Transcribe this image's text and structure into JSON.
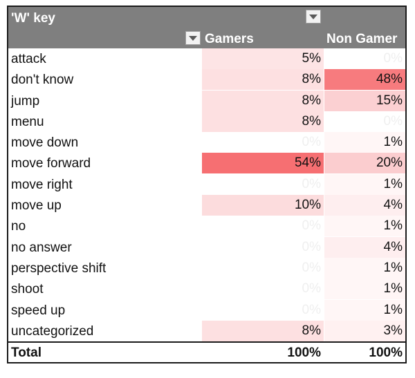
{
  "pivot": {
    "title": "'W' key",
    "columns": [
      "Gamers",
      "Non Gamer"
    ],
    "rows": [
      {
        "label": "attack",
        "gamers": "5%",
        "non_gamer": "0%",
        "g_bg": "#fde4e5",
        "n_bg": "#ffffff",
        "g_faded": false,
        "n_faded": true
      },
      {
        "label": "don't know",
        "gamers": "8%",
        "non_gamer": "48%",
        "g_bg": "#fde0e1",
        "n_bg": "#f77b7e",
        "g_faded": false,
        "n_faded": false
      },
      {
        "label": "jump",
        "gamers": "8%",
        "non_gamer": "15%",
        "g_bg": "#fde0e1",
        "n_bg": "#fbd0d2",
        "g_faded": false,
        "n_faded": false
      },
      {
        "label": "menu",
        "gamers": "8%",
        "non_gamer": "0%",
        "g_bg": "#fde0e1",
        "n_bg": "#ffffff",
        "g_faded": false,
        "n_faded": true
      },
      {
        "label": "move down",
        "gamers": "0%",
        "non_gamer": "1%",
        "g_bg": "#ffffff",
        "n_bg": "#fff6f6",
        "g_faded": true,
        "n_faded": false
      },
      {
        "label": "move forward",
        "gamers": "54%",
        "non_gamer": "20%",
        "g_bg": "#f66f72",
        "n_bg": "#fbcdcf",
        "g_faded": false,
        "n_faded": false
      },
      {
        "label": "move right",
        "gamers": "0%",
        "non_gamer": "1%",
        "g_bg": "#ffffff",
        "n_bg": "#fff6f6",
        "g_faded": true,
        "n_faded": false
      },
      {
        "label": "move up",
        "gamers": "10%",
        "non_gamer": "4%",
        "g_bg": "#fcdcdd",
        "n_bg": "#feeeef",
        "g_faded": false,
        "n_faded": false
      },
      {
        "label": "no",
        "gamers": "0%",
        "non_gamer": "1%",
        "g_bg": "#ffffff",
        "n_bg": "#fff6f6",
        "g_faded": true,
        "n_faded": false
      },
      {
        "label": "no answer",
        "gamers": "0%",
        "non_gamer": "4%",
        "g_bg": "#ffffff",
        "n_bg": "#feeeef",
        "g_faded": true,
        "n_faded": false
      },
      {
        "label": "perspective shift",
        "gamers": "0%",
        "non_gamer": "1%",
        "g_bg": "#ffffff",
        "n_bg": "#fff6f6",
        "g_faded": true,
        "n_faded": false
      },
      {
        "label": "shoot",
        "gamers": "0%",
        "non_gamer": "1%",
        "g_bg": "#ffffff",
        "n_bg": "#fff6f6",
        "g_faded": true,
        "n_faded": false
      },
      {
        "label": "speed up",
        "gamers": "0%",
        "non_gamer": "1%",
        "g_bg": "#ffffff",
        "n_bg": "#fff6f6",
        "g_faded": true,
        "n_faded": false
      },
      {
        "label": "uncategorized",
        "gamers": "8%",
        "non_gamer": "3%",
        "g_bg": "#fde0e1",
        "n_bg": "#fff1f1",
        "g_faded": false,
        "n_faded": false
      }
    ],
    "total": {
      "label": "Total",
      "gamers": "100%",
      "non_gamer": "100%"
    }
  },
  "colors": {
    "header_bg": "#7f7f7f",
    "header_text": "#ffffff",
    "faded_text": "#efefef",
    "heat_max": "#f66f72"
  }
}
